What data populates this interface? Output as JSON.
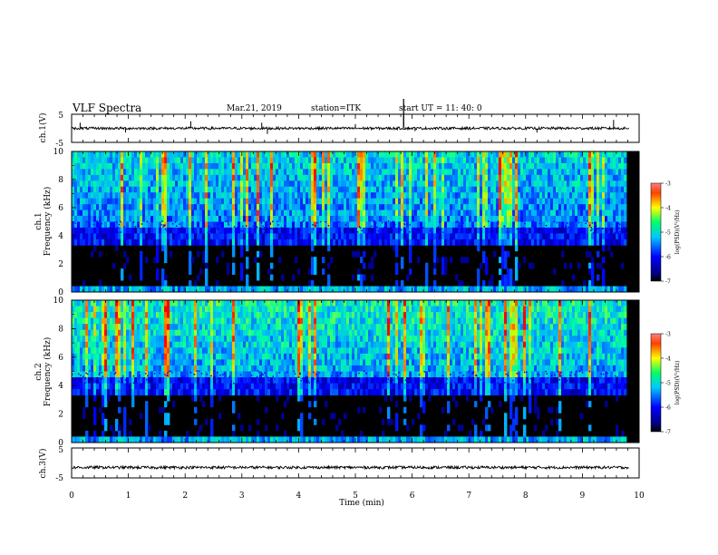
{
  "header": {
    "title": "VLF Spectra",
    "date": "Mar.21, 2019",
    "station": "station=ITK",
    "start": "start  UT  =   11: 40: 0"
  },
  "chart_data": [
    {
      "type": "line",
      "panel": "ch1-waveform",
      "ylabel": "ch.1(V)",
      "ylim": [
        -5,
        5
      ],
      "yticks": [
        "5",
        "-5"
      ],
      "xlim": [
        0,
        10
      ],
      "baseline_y": 0,
      "spikes": [
        {
          "x": 0.15,
          "y": 2.0
        },
        {
          "x": 0.95,
          "y": -1.5
        },
        {
          "x": 2.1,
          "y": 2.5
        },
        {
          "x": 3.35,
          "y": 2.0
        },
        {
          "x": 3.45,
          "y": -2.0
        },
        {
          "x": 5.0,
          "y": 1.5
        },
        {
          "x": 5.85,
          "y": 5.0
        },
        {
          "x": 6.05,
          "y": -1.0
        },
        {
          "x": 8.2,
          "y": -1.5
        },
        {
          "x": 9.55,
          "y": 3.0
        }
      ]
    },
    {
      "type": "heatmap",
      "panel": "ch1-spectrogram",
      "ylabel": "ch.1\nFrequency (kHz)",
      "ylim": [
        0,
        10
      ],
      "yticks": [
        "0",
        "2",
        "4",
        "6",
        "8",
        "10"
      ],
      "xlim": [
        0,
        10
      ],
      "colorbar": {
        "label": "log(PSD)(V²/Hz)",
        "range": [
          -7,
          -3
        ],
        "ticks": [
          "-3",
          "-4",
          "-5",
          "-6",
          "-7"
        ]
      },
      "noise_floor_khz": 4.5
    },
    {
      "type": "heatmap",
      "panel": "ch2-spectrogram",
      "ylabel": "ch.2\nFrequency (kHz)",
      "ylim": [
        0,
        10
      ],
      "yticks": [
        "0",
        "2",
        "4",
        "6",
        "8",
        "10"
      ],
      "xlim": [
        0,
        10
      ],
      "colorbar": {
        "label": "log(PSD)(V²/Hz)",
        "range": [
          -7,
          -3
        ],
        "ticks": [
          "-3",
          "-4",
          "-5",
          "-6",
          "-7"
        ]
      },
      "noise_floor_khz": 4.5
    },
    {
      "type": "line",
      "panel": "ch3-waveform",
      "ylabel": "ch.3(V)",
      "ylim": [
        -5,
        5
      ],
      "yticks": [
        "5",
        "-5"
      ],
      "xlim": [
        0,
        10
      ],
      "xlabel": "Time  (min)",
      "xticks": [
        "0",
        "1",
        "2",
        "3",
        "4",
        "5",
        "6",
        "7",
        "8",
        "9",
        "10"
      ],
      "baseline_y": -1.5
    }
  ],
  "colors": {
    "low": "#000000",
    "blue": "#0000ff",
    "cyan": "#00c8ff",
    "green": "#00ff88",
    "yellow": "#ffff00",
    "red": "#ff0000",
    "axis": "#000000"
  }
}
